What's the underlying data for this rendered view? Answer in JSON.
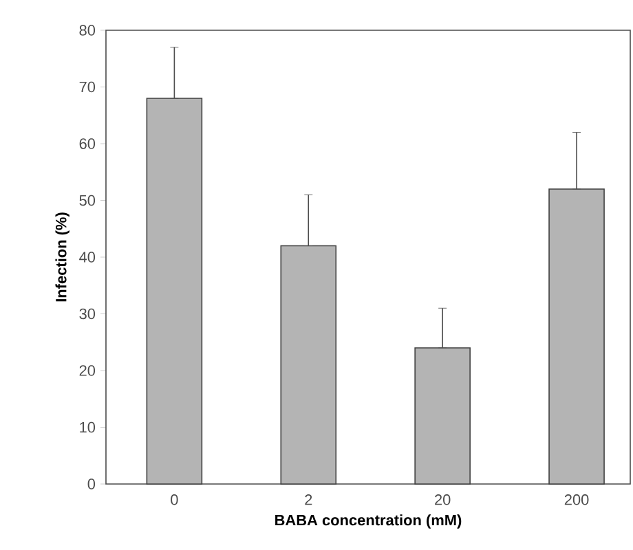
{
  "chart_data": {
    "type": "bar",
    "xlabel": "BABA concentration (mM)",
    "ylabel": "Infection (%)",
    "categories": [
      "0",
      "2",
      "20",
      "200"
    ],
    "values": [
      68,
      42,
      24,
      52
    ],
    "errors": [
      [
        68,
        77
      ],
      [
        42,
        51
      ],
      [
        24,
        31
      ],
      [
        52,
        62
      ]
    ],
    "color": "#b4b4b4",
    "ylim": [
      0,
      80
    ],
    "yticks": [
      0,
      10,
      20,
      30,
      40,
      50,
      60,
      70,
      80
    ],
    "grid": false
  }
}
